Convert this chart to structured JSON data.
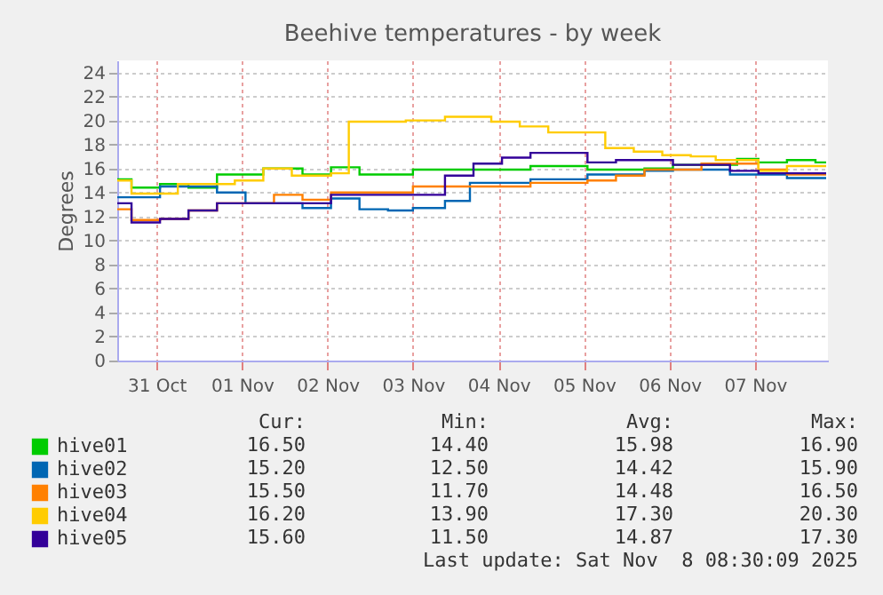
{
  "chart_data": {
    "type": "step",
    "title": "Beehive temperatures - by week",
    "ylabel": "Degrees",
    "xlim": [
      "--10-31T01:00",
      "--11-08T08:30"
    ],
    "xticks": [
      {
        "value": "--10-31T12:00",
        "label": "31 Oct"
      },
      {
        "value": "--11-01T12:00",
        "label": "01 Nov"
      },
      {
        "value": "--11-02T12:00",
        "label": "02 Nov"
      },
      {
        "value": "--11-03T12:00",
        "label": "03 Nov"
      },
      {
        "value": "--11-04T12:00",
        "label": "04 Nov"
      },
      {
        "value": "--11-05T12:00",
        "label": "05 Nov"
      },
      {
        "value": "--11-06T12:00",
        "label": "06 Nov"
      },
      {
        "value": "--11-07T12:00",
        "label": "07 Nov"
      }
    ],
    "ylim": [
      0,
      25
    ],
    "yticks": [
      0,
      2,
      4,
      6,
      8,
      10,
      12,
      14,
      16,
      18,
      20,
      22,
      24
    ],
    "grid": true,
    "legend": "bottom left",
    "series": [
      {
        "name": "hive01",
        "color": "#00cc00",
        "x": [
          "--10-31T01:00",
          "--10-31T05:00",
          "--10-31T13:00",
          "--10-31T21:00",
          "--11-01T05:00",
          "--11-01T18:00",
          "--11-02T05:00",
          "--11-02T13:00",
          "--11-02T21:00",
          "--11-03T12:00",
          "--11-04T21:00",
          "--11-05T13:00",
          "--11-06T05:00",
          "--11-06T13:00",
          "--11-07T07:00",
          "--11-07T13:00",
          "--11-07T21:00",
          "--11-08T05:00",
          "--11-08T08:00"
        ],
        "values": [
          15.1,
          14.4,
          14.7,
          14.4,
          15.5,
          16.0,
          15.5,
          16.1,
          15.5,
          15.9,
          16.2,
          15.9,
          16.0,
          16.3,
          16.8,
          16.5,
          16.7,
          16.5,
          16.5
        ]
      },
      {
        "name": "hive02",
        "color": "#0066b3",
        "x": [
          "--10-31T01:00",
          "--10-31T13:00",
          "--11-01T05:00",
          "--11-01T13:00",
          "--11-02T05:00",
          "--11-02T13:00",
          "--11-02T21:00",
          "--11-03T05:00",
          "--11-03T12:00",
          "--11-03T21:00",
          "--11-04T04:00",
          "--11-04T21:00",
          "--11-05T13:00",
          "--11-06T05:00",
          "--11-06T13:00",
          "--11-07T05:00",
          "--11-07T21:00",
          "--11-08T08:00"
        ],
        "values": [
          13.6,
          14.5,
          14.0,
          13.1,
          12.7,
          13.5,
          12.6,
          12.5,
          12.7,
          13.3,
          14.8,
          15.1,
          15.5,
          15.8,
          15.9,
          15.5,
          15.2,
          15.2
        ]
      },
      {
        "name": "hive03",
        "color": "#ff8000",
        "x": [
          "--10-31T01:00",
          "--10-31T05:00",
          "--10-31T13:00",
          "--10-31T21:00",
          "--11-01T05:00",
          "--11-01T21:00",
          "--11-02T05:00",
          "--11-02T13:00",
          "--11-03T12:00",
          "--11-04T21:00",
          "--11-05T13:00",
          "--11-05T21:00",
          "--11-06T05:00",
          "--11-06T21:00",
          "--11-07T13:00",
          "--11-07T21:00",
          "--11-08T08:00"
        ],
        "values": [
          12.6,
          11.7,
          11.8,
          12.5,
          13.1,
          13.8,
          13.4,
          14.0,
          14.5,
          14.8,
          15.0,
          15.4,
          15.9,
          16.4,
          15.9,
          15.5,
          15.5
        ]
      },
      {
        "name": "hive04",
        "color": "#ffcc00",
        "x": [
          "--10-31T01:00",
          "--10-31T05:00",
          "--10-31T18:00",
          "--11-01T10:00",
          "--11-01T18:00",
          "--11-02T02:00",
          "--11-02T13:00",
          "--11-02T18:00",
          "--11-03T10:00",
          "--11-03T21:00",
          "--11-04T10:00",
          "--11-04T18:00",
          "--11-05T02:00",
          "--11-05T18:00",
          "--11-06T02:00",
          "--11-06T10:00",
          "--11-06T18:00",
          "--11-07T01:00",
          "--11-07T13:00",
          "--11-07T21:00",
          "--11-08T08:00"
        ],
        "values": [
          15.0,
          13.9,
          14.7,
          15.0,
          16.0,
          15.4,
          15.6,
          19.9,
          20.0,
          20.3,
          19.9,
          19.5,
          19.0,
          17.7,
          17.4,
          17.1,
          17.0,
          16.7,
          15.8,
          16.2,
          16.2
        ]
      },
      {
        "name": "hive05",
        "color": "#330099",
        "x": [
          "--10-31T01:00",
          "--10-31T05:00",
          "--10-31T13:00",
          "--10-31T21:00",
          "--11-01T05:00",
          "--11-02T13:00",
          "--11-03T21:00",
          "--11-04T05:00",
          "--11-04T13:00",
          "--11-04T21:00",
          "--11-05T13:00",
          "--11-05T21:00",
          "--11-06T13:00",
          "--11-07T05:00",
          "--11-07T13:00",
          "--11-08T08:00"
        ],
        "values": [
          13.1,
          11.5,
          11.8,
          12.5,
          13.1,
          13.8,
          15.4,
          16.4,
          16.9,
          17.3,
          16.5,
          16.7,
          16.3,
          15.8,
          15.6,
          15.6
        ]
      }
    ],
    "annotations": [
      "Cur:",
      "Min:",
      "Avg:",
      "Max:",
      "16.50",
      "14.40",
      "15.98",
      "16.90",
      "15.20",
      "12.50",
      "14.42",
      "15.90",
      "15.50",
      "11.70",
      "14.48",
      "16.50",
      "16.20",
      "13.90",
      "17.30",
      "20.30",
      "15.60",
      "11.50",
      "14.87",
      "17.30",
      "Last update: Sat Nov  8 08:30:09 2025"
    ]
  }
}
